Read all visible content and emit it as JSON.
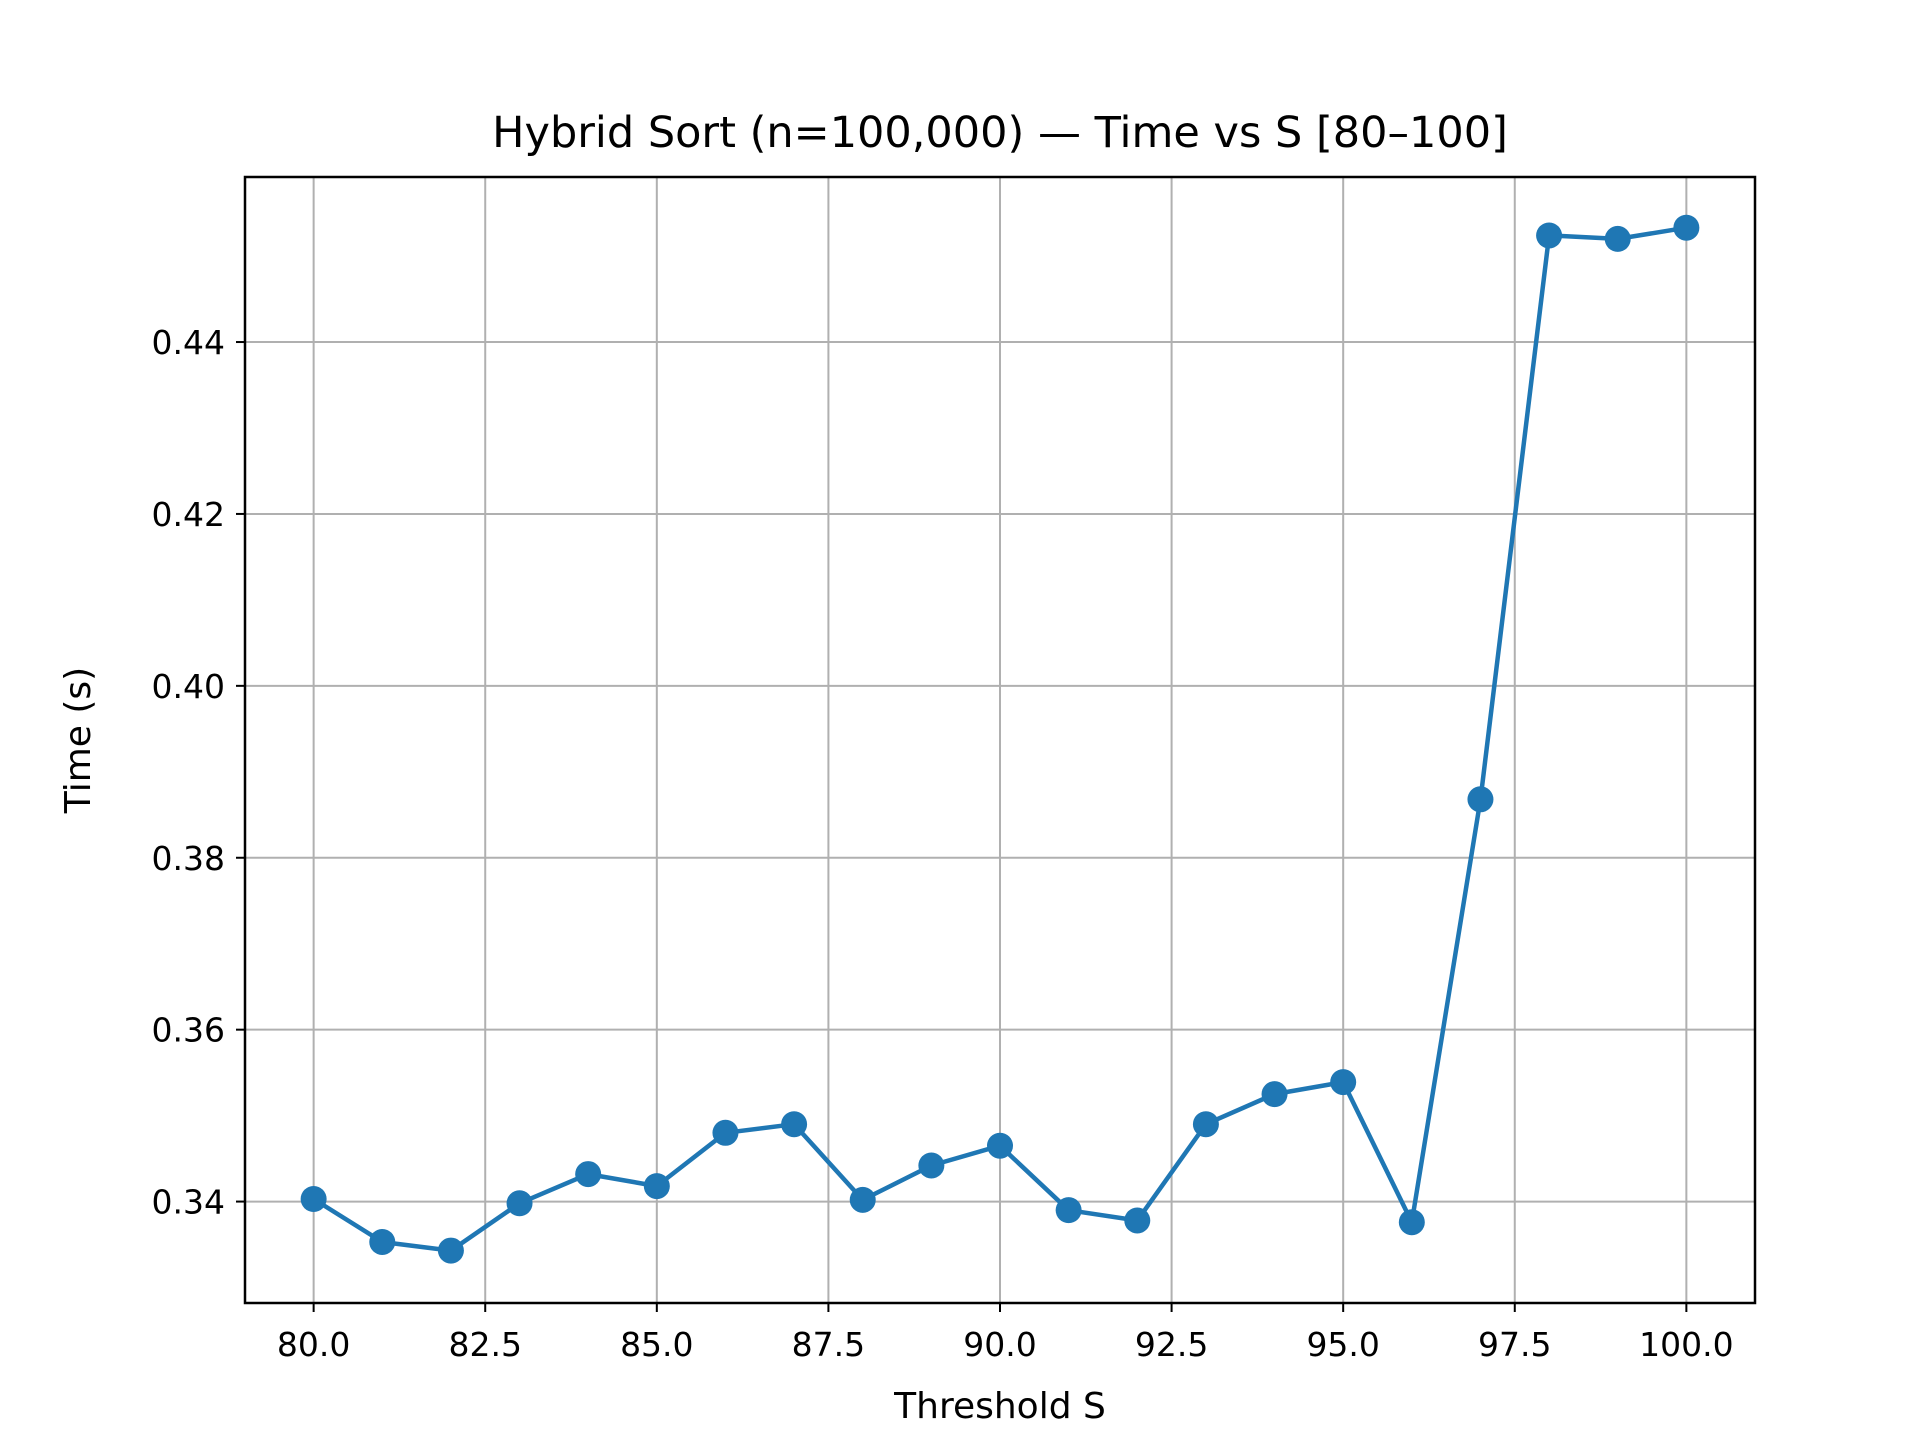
{
  "chart_data": {
    "type": "line",
    "title": "Hybrid Sort (n=100,000) — Time vs S [80–100]",
    "xlabel": "Threshold S",
    "ylabel": "Time (s)",
    "xlim": [
      79,
      101
    ],
    "ylim": [
      0.3282,
      0.4592
    ],
    "x_ticks": [
      80.0,
      82.5,
      85.0,
      87.5,
      90.0,
      92.5,
      95.0,
      97.5,
      100.0
    ],
    "x_tick_labels": [
      "80.0",
      "82.5",
      "85.0",
      "87.5",
      "90.0",
      "92.5",
      "95.0",
      "97.5",
      "100.0"
    ],
    "y_ticks": [
      0.34,
      0.36,
      0.38,
      0.4,
      0.42,
      0.44
    ],
    "y_tick_labels": [
      "0.34",
      "0.36",
      "0.38",
      "0.40",
      "0.42",
      "0.44"
    ],
    "grid": true,
    "series": [
      {
        "color": "#1f77b4",
        "marker": "circle",
        "x": [
          80,
          81,
          82,
          83,
          84,
          85,
          86,
          87,
          88,
          89,
          90,
          91,
          92,
          93,
          94,
          95,
          96,
          97,
          98,
          99,
          100
        ],
        "y": [
          0.3403,
          0.3353,
          0.3343,
          0.3398,
          0.3432,
          0.3418,
          0.348,
          0.349,
          0.3402,
          0.3442,
          0.3465,
          0.339,
          0.3378,
          0.349,
          0.3525,
          0.3539,
          0.3376,
          0.3868,
          0.4524,
          0.452,
          0.4533
        ]
      }
    ]
  }
}
